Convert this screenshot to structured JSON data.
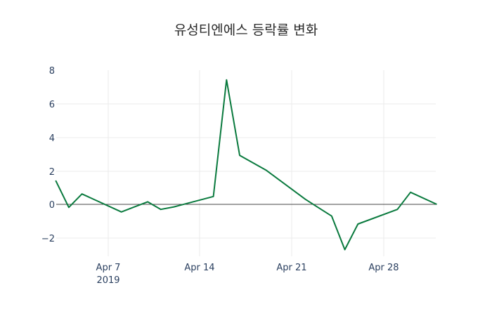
{
  "chart_data": {
    "type": "line",
    "title": "유성티엔에스 등락률 변화",
    "xlabel": "",
    "ylabel": "",
    "x": [
      "2019-04-03",
      "2019-04-04",
      "2019-04-05",
      "2019-04-08",
      "2019-04-09",
      "2019-04-10",
      "2019-04-11",
      "2019-04-12",
      "2019-04-15",
      "2019-04-16",
      "2019-04-17",
      "2019-04-18",
      "2019-04-19",
      "2019-04-22",
      "2019-04-23",
      "2019-04-24",
      "2019-04-25",
      "2019-04-26",
      "2019-04-29",
      "2019-04-30",
      "2019-05-02"
    ],
    "series": [
      {
        "name": "등락률",
        "color": "#0a7a3e",
        "values": [
          1.42,
          -0.18,
          0.62,
          -0.45,
          -0.15,
          0.15,
          -0.3,
          -0.15,
          0.47,
          7.42,
          2.92,
          2.48,
          2.04,
          0.3,
          -0.2,
          -0.7,
          -2.7,
          -1.17,
          -0.3,
          0.72,
          0.0
        ]
      }
    ],
    "x_ticks": [
      "Apr 7\n2019",
      "Apr 14",
      "Apr 21",
      "Apr 28"
    ],
    "y_ticks": [
      8,
      6,
      4,
      2,
      0,
      -2
    ],
    "ylim": [
      -2.9,
      8.2
    ],
    "grid": true,
    "zero_line": true,
    "legend": "none"
  },
  "labels": {
    "title": "유성티엔에스 등락률 변화",
    "x_ticks": [
      "Apr 7",
      "Apr 14",
      "Apr 21",
      "Apr 28"
    ],
    "x_year": "2019",
    "y_ticks": [
      "8",
      "6",
      "4",
      "2",
      "0",
      "−2"
    ]
  }
}
